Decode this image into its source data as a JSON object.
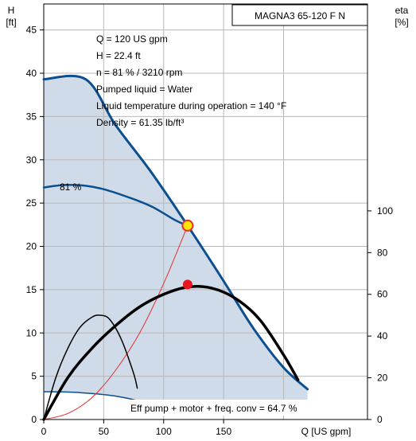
{
  "chart_data": {
    "type": "line",
    "title": "MAGNA3 65-120 F N",
    "y_left_label": "H",
    "y_left_unit": "[ft]",
    "y_right_label": "eta",
    "y_right_unit": "[%]",
    "x_label": "Q [US gpm]",
    "x_ticks": [
      "0",
      "50",
      "100",
      "150"
    ],
    "x_tick_values": [
      0,
      50,
      100,
      150
    ],
    "y_left_ticks": [
      "0",
      "5",
      "10",
      "15",
      "20",
      "25",
      "30",
      "35",
      "40",
      "45"
    ],
    "y_left_tick_values": [
      0,
      5,
      10,
      15,
      20,
      25,
      30,
      35,
      40,
      45
    ],
    "y_right_ticks": [
      "0",
      "20",
      "40",
      "60",
      "80",
      "100"
    ],
    "y_right_tick_values": [
      0,
      20,
      40,
      60,
      80,
      100
    ],
    "xlim": [
      0,
      270
    ],
    "ylim_left": [
      0,
      48
    ],
    "ylim_right": [
      0,
      100
    ],
    "grid": true,
    "info_lines": [
      "Q = 120 US gpm",
      "H = 22.4 ft",
      "n = 81 % / 3210 rpm",
      "Pumped liquid = Water",
      "Liquid temperature during operation = 140 °F",
      "Density = 61.35 lb/ft³"
    ],
    "speed_label": "81 %",
    "eff_label": "Eff pump + motor + freq. conv = 64.7 %",
    "colors": {
      "curve": "#0b4f8f",
      "area": "#cfdbe8",
      "system": "#e03030",
      "duty_fill": "#ffe400",
      "eff": "#000000"
    },
    "series": [
      {
        "axis": "left",
        "color": "#0b4f8f",
        "width": 3,
        "x": [
          0,
          35,
          60,
          90,
          120,
          150,
          175,
          200,
          220
        ],
        "y": [
          39.3,
          39.3,
          34,
          28.5,
          22.4,
          16,
          10.5,
          6,
          3.5
        ]
      },
      {
        "axis": "left",
        "color": "#0b4f8f",
        "width": 2.5,
        "x": [
          0,
          10,
          20,
          35,
          50,
          70,
          90,
          110,
          120
        ],
        "y": [
          26.8,
          27,
          27.1,
          27,
          26.6,
          25.7,
          24.6,
          23,
          22.4
        ]
      },
      {
        "axis": "left",
        "color": "#0b4f8f",
        "width": 1.5,
        "x": [
          0,
          10,
          25,
          40,
          55,
          70,
          85,
          100,
          110
        ],
        "y": [
          3.2,
          3.2,
          3.15,
          3.0,
          2.8,
          2.45,
          1.9,
          1.2,
          0.7
        ]
      },
      {
        "axis": "left",
        "color": "#e03030",
        "width": 1,
        "x": [
          0,
          20,
          40,
          60,
          80,
          100,
          120
        ],
        "y": [
          0,
          0.7,
          2.5,
          5.7,
          10,
          15.7,
          22.4
        ]
      },
      {
        "axis": "right",
        "color": "#000000",
        "width": 3.5,
        "x": [
          0,
          20,
          40,
          60,
          80,
          100,
          120,
          140,
          160,
          180,
          200,
          212
        ],
        "y": [
          0,
          20,
          34,
          45,
          54,
          60,
          63.5,
          63,
          58,
          48,
          31,
          19
        ]
      },
      {
        "axis": "right",
        "color": "#000000",
        "width": 1.5,
        "x": [
          0,
          10,
          20,
          30,
          40,
          47,
          55,
          65,
          75,
          78
        ],
        "y": [
          0,
          20,
          34,
          44,
          49,
          50,
          48,
          38,
          22,
          15
        ]
      }
    ],
    "points": [
      {
        "axis": "left",
        "x": 120,
        "y": 22.4,
        "label": "duty-point"
      },
      {
        "axis": "right",
        "x": 120,
        "y": 64.7,
        "label": "eff-point"
      }
    ]
  }
}
